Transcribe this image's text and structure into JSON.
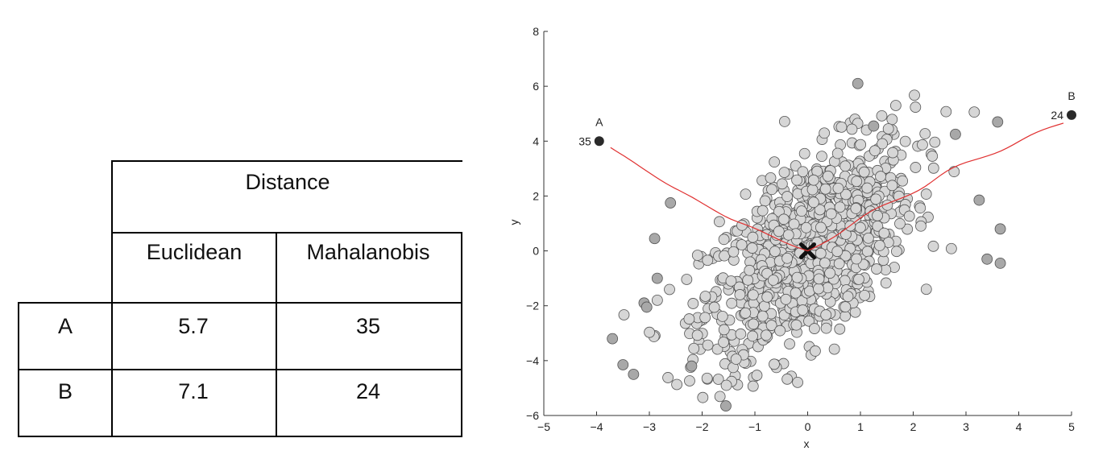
{
  "table": {
    "group_header": "Distance",
    "columns": [
      "Euclidean",
      "Mahalanobis"
    ],
    "rows": [
      {
        "label": "A",
        "euclidean": "5.7",
        "mahalanobis": "35"
      },
      {
        "label": "B",
        "euclidean": "7.1",
        "mahalanobis": "24"
      }
    ]
  },
  "chart_data": {
    "type": "scatter",
    "xlabel": "x",
    "ylabel": "y",
    "xlim": [
      -5,
      5
    ],
    "ylim": [
      -6,
      8
    ],
    "xticks": [
      "−5",
      "−4",
      "−3",
      "−2",
      "−1",
      "0",
      "1",
      "2",
      "3",
      "4",
      "5"
    ],
    "yticks": [
      "−6",
      "−4",
      "−2",
      "0",
      "2",
      "4",
      "6",
      "8"
    ],
    "grid": false,
    "distribution": {
      "description_values": "about 1000 gray points, correlated bivariate cloud",
      "mean": [
        0,
        0
      ],
      "sd_x": 1.0,
      "sd_y": 2.0,
      "correlation": 0.6,
      "point_count": 1000
    },
    "outliers": [
      {
        "x": 0.95,
        "y": 6.1
      },
      {
        "x": -2.6,
        "y": 1.75
      },
      {
        "x": -3.7,
        "y": -3.2
      },
      {
        "x": -3.5,
        "y": -4.15
      },
      {
        "x": -3.3,
        "y": -4.5
      },
      {
        "x": -2.9,
        "y": 0.45
      },
      {
        "x": -2.85,
        "y": -1.0
      },
      {
        "x": -3.1,
        "y": -1.9
      },
      {
        "x": -1.55,
        "y": -5.65
      },
      {
        "x": 3.6,
        "y": 4.7
      },
      {
        "x": 3.65,
        "y": 0.8
      },
      {
        "x": 3.65,
        "y": -0.45
      },
      {
        "x": 3.4,
        "y": -0.3
      },
      {
        "x": 3.25,
        "y": 1.85
      },
      {
        "x": 2.8,
        "y": 4.25
      },
      {
        "x": 1.25,
        "y": 4.55
      },
      {
        "x": -2.2,
        "y": -4.2
      },
      {
        "x": -3.05,
        "y": -2.05
      }
    ],
    "mean_marker": {
      "x": 0,
      "y": 0,
      "symbol": "X"
    },
    "labeled_points": [
      {
        "name": "A",
        "x": -3.95,
        "y": 4.0,
        "label": "35"
      },
      {
        "name": "B",
        "x": 5.0,
        "y": 4.95,
        "label": "24"
      }
    ],
    "colors": {
      "points": "#d6d6d6",
      "outliers": "#a8a8a8",
      "labeled": "#2a2a2a",
      "paths": "#e03030"
    }
  }
}
